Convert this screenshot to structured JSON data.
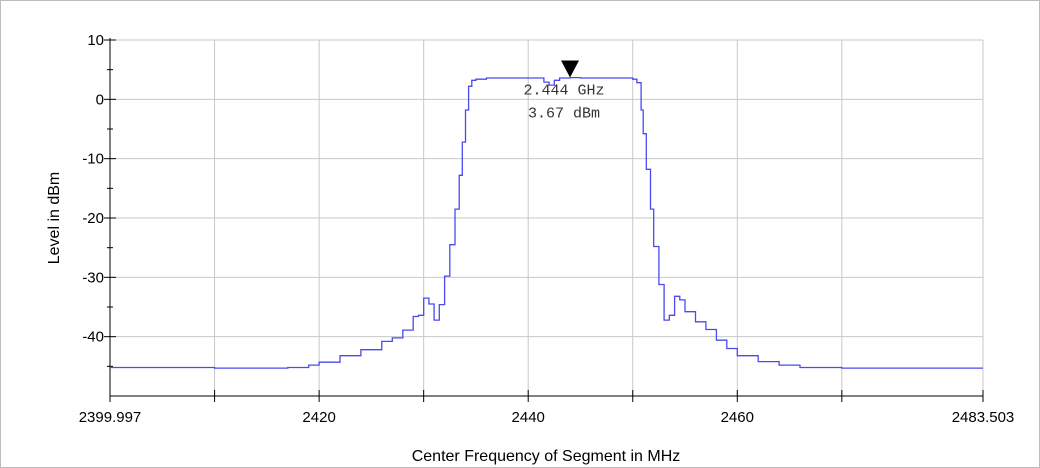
{
  "chart_data": {
    "type": "line",
    "title": "",
    "xlabel": "Center Frequency of Segment in MHz",
    "ylabel": "Level in dBm",
    "xlim": [
      2399.997,
      2483.503
    ],
    "ylim": [
      -50,
      10
    ],
    "x_ticks": [
      2399.997,
      2410,
      2420,
      2430,
      2440,
      2450,
      2460,
      2470,
      2483.503
    ],
    "x_tick_labels": [
      "2399.997",
      "",
      "2420",
      "",
      "2440",
      "",
      "2460",
      "",
      "2483.503"
    ],
    "y_ticks": [
      10,
      0,
      -10,
      -20,
      -30,
      -40
    ],
    "y_tick_labels": [
      "10",
      "0",
      "-10",
      "-20",
      "-30",
      "-40"
    ],
    "grid": true,
    "legend": "none",
    "line_color": "#4a4aef",
    "series": [
      {
        "x": [
          2399.997,
          2410,
          2417,
          2419,
          2420,
          2422,
          2424,
          2426,
          2427,
          2428,
          2429,
          2429.5,
          2430,
          2430.5,
          2431,
          2431.5,
          2432,
          2432.5,
          2433,
          2433.4,
          2433.7,
          2434,
          2434.3,
          2434.6,
          2435,
          2436,
          2437,
          2439,
          2441,
          2441.5,
          2442,
          2442.5,
          2443,
          2443.5,
          2444,
          2445,
          2447,
          2449,
          2450,
          2450.4,
          2450.8,
          2451,
          2451.3,
          2451.7,
          2452,
          2452.5,
          2453,
          2453.5,
          2454,
          2454.5,
          2455,
          2456,
          2457,
          2458,
          2459,
          2460,
          2462,
          2464,
          2466,
          2470,
          2483.503
        ],
        "y": [
          -45.2,
          -45.3,
          -45.2,
          -44.8,
          -44.3,
          -43.2,
          -42.2,
          -40.8,
          -40.2,
          -38.9,
          -36.6,
          -36.4,
          -33.5,
          -34.5,
          -37.2,
          -34.6,
          -29.8,
          -24.5,
          -18.5,
          -12.8,
          -7.2,
          -1.8,
          2.2,
          3.2,
          3.4,
          3.6,
          3.6,
          3.6,
          3.6,
          2.9,
          2.4,
          3.2,
          3.6,
          3.6,
          3.67,
          3.6,
          3.6,
          3.6,
          3.4,
          2.8,
          -1.8,
          -5.8,
          -11.8,
          -18.5,
          -24.8,
          -31.2,
          -37.2,
          -36.4,
          -33.2,
          -33.8,
          -35.8,
          -37.5,
          -38.8,
          -40.6,
          -42.0,
          -43.2,
          -44.2,
          -44.8,
          -45.2,
          -45.3,
          -45.3
        ]
      }
    ],
    "marker": {
      "x": 2444,
      "y": 3.67,
      "label_freq": "2.444 GHz",
      "label_level": "3.67 dBm"
    }
  }
}
